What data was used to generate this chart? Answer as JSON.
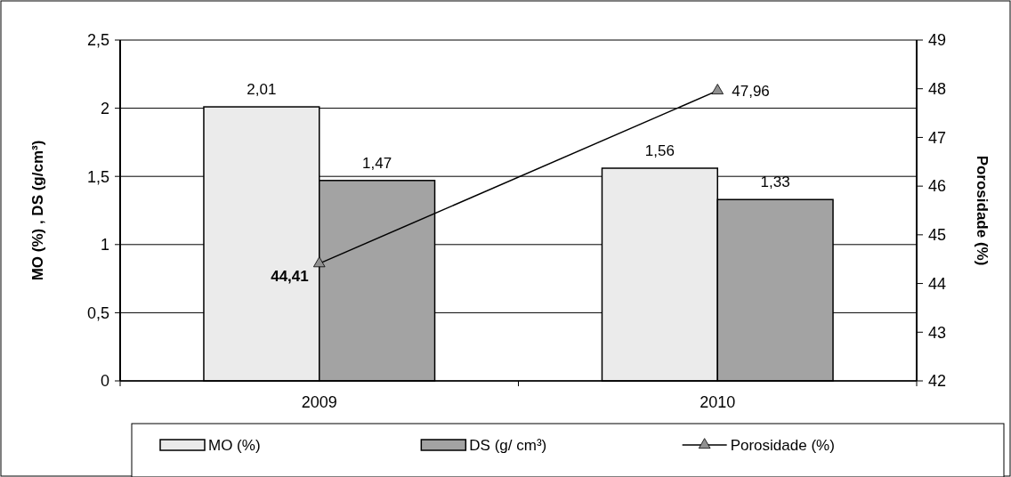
{
  "chart_data": {
    "type": "bar",
    "categories": [
      "2009",
      "2010"
    ],
    "ylabel": "MO (%)  , DS (g/cm³)",
    "y2label": "Porosidade (%)",
    "series": [
      {
        "name": "MO (%)",
        "color": "#ebebeb",
        "values": [
          2.01,
          1.56
        ],
        "value_labels": [
          "2,01",
          "1,56"
        ]
      },
      {
        "name": "DS (g/ cm³)",
        "color": "#a3a3a3",
        "values": [
          1.47,
          1.33
        ],
        "value_labels": [
          "1,47",
          "1,33"
        ]
      },
      {
        "name": "Porosidade (%)",
        "type": "line",
        "axis": "y2",
        "color": "#000000",
        "values": [
          44.41,
          47.96
        ],
        "value_labels": [
          "44,41",
          "47,96"
        ],
        "marker": "triangle"
      }
    ],
    "ylim": [
      0,
      2.5
    ],
    "yticks": [
      0,
      {
        "value": 0.5,
        "label": "0,5"
      },
      1,
      {
        "value": 1.5,
        "label": "1,5"
      },
      2,
      {
        "value": 2.5,
        "label": "2,5"
      }
    ],
    "y2lim": [
      42,
      49
    ],
    "y2ticks": [
      42,
      43,
      44,
      45,
      46,
      47,
      48,
      49
    ],
    "grid": "y",
    "legend": "bottom"
  }
}
